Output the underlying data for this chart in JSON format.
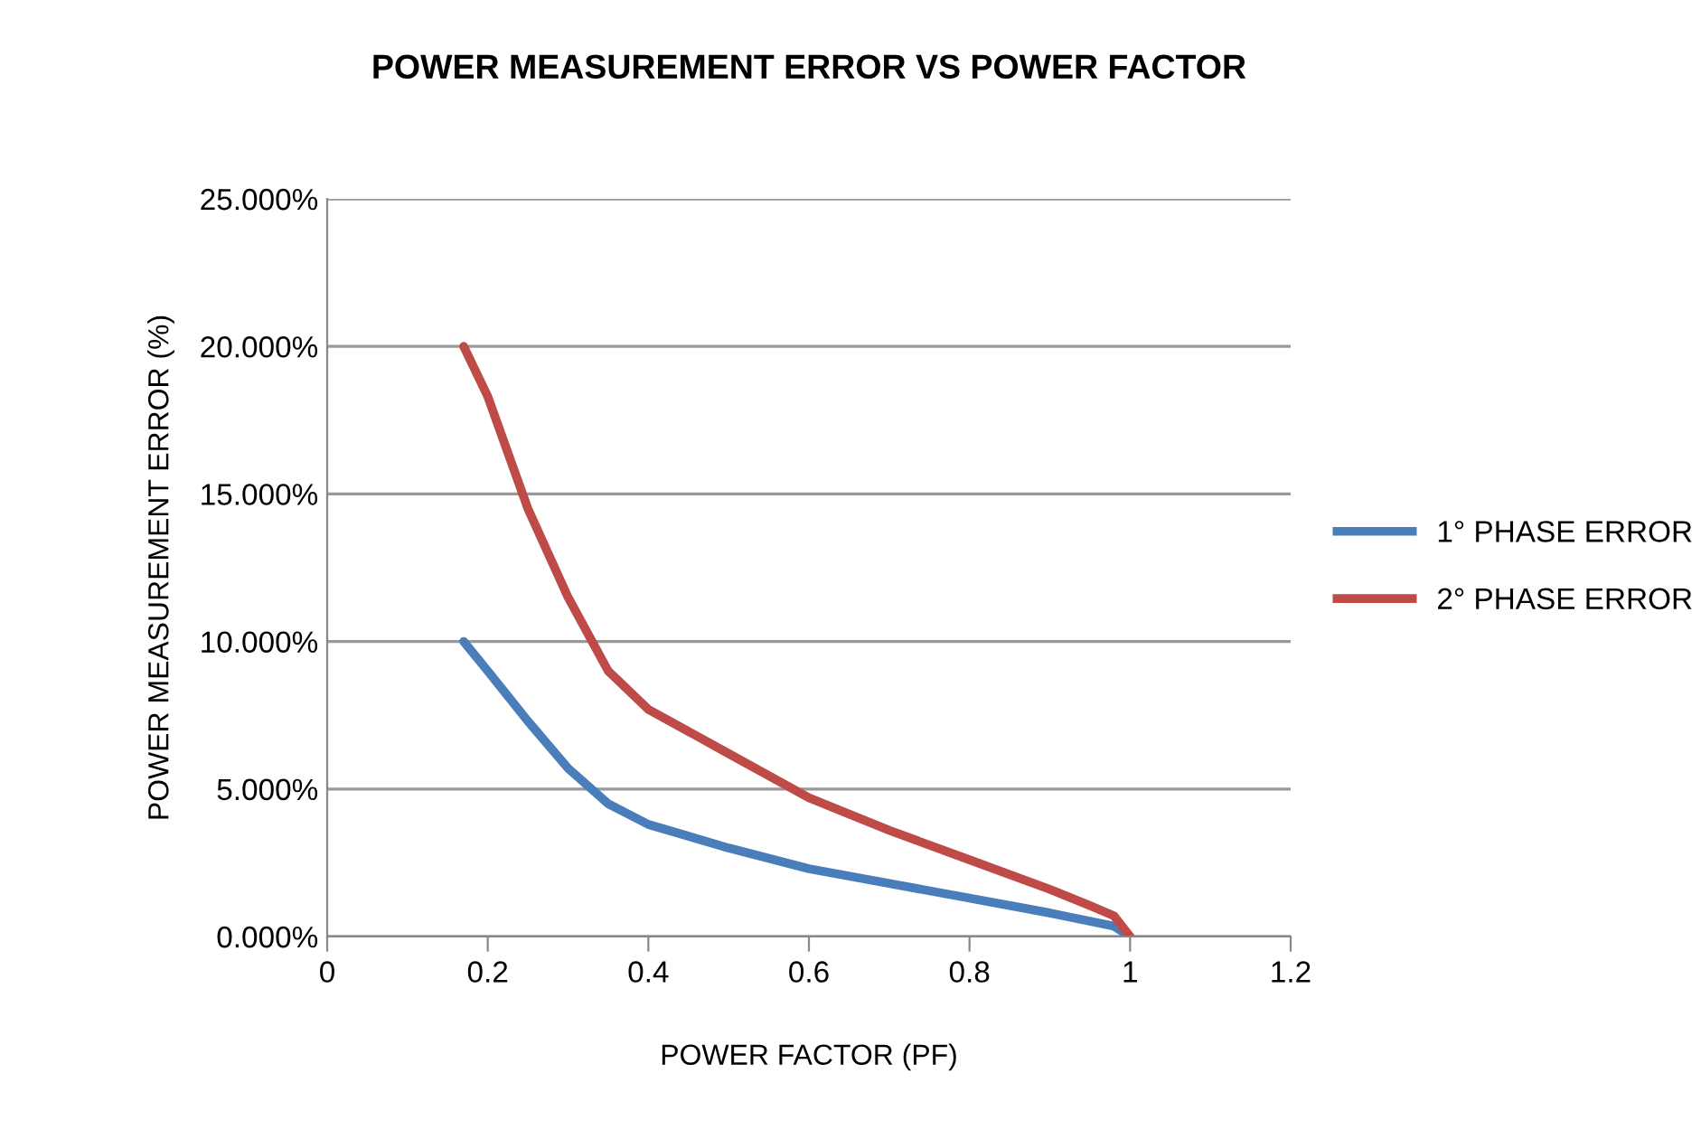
{
  "chart_data": {
    "type": "line",
    "title": "POWER MEASUREMENT ERROR VS POWER FACTOR",
    "xlabel": "POWER FACTOR (PF)",
    "ylabel": "POWER MEASUREMENT ERROR (%)",
    "series": [
      {
        "name": "1° PHASE ERROR",
        "color": "#4a7ebb",
        "x": [
          0.17,
          0.2,
          0.25,
          0.3,
          0.35,
          0.4,
          0.5,
          0.6,
          0.7,
          0.8,
          0.9,
          0.98,
          1.0
        ],
        "values": [
          10.0,
          9.0,
          7.3,
          5.7,
          4.5,
          3.8,
          3.0,
          2.3,
          1.8,
          1.3,
          0.8,
          0.35,
          0.0
        ]
      },
      {
        "name": "2° PHASE ERROR",
        "color": "#be4b48",
        "x": [
          0.17,
          0.2,
          0.25,
          0.3,
          0.35,
          0.4,
          0.5,
          0.6,
          0.7,
          0.8,
          0.9,
          0.95,
          0.98,
          1.0
        ],
        "values": [
          20.0,
          18.3,
          14.5,
          11.5,
          9.0,
          7.7,
          6.2,
          4.7,
          3.6,
          2.6,
          1.6,
          1.05,
          0.7,
          0.0
        ]
      }
    ],
    "xlim": [
      0,
      1.2
    ],
    "xticks": [
      0,
      0.2,
      0.4,
      0.6,
      0.8,
      1,
      1.2
    ],
    "ylim": [
      0,
      25
    ],
    "yticks": [
      {
        "value": 0,
        "label": "0.000%"
      },
      {
        "value": 5,
        "label": "5.000%"
      },
      {
        "value": 10,
        "label": "10.000%"
      },
      {
        "value": 15,
        "label": "15.000%"
      },
      {
        "value": 20,
        "label": "20.000%"
      },
      {
        "value": 25,
        "label": "25.000%"
      }
    ],
    "grid": "y",
    "legend": "right",
    "marker": "none",
    "line_style": "solid"
  }
}
